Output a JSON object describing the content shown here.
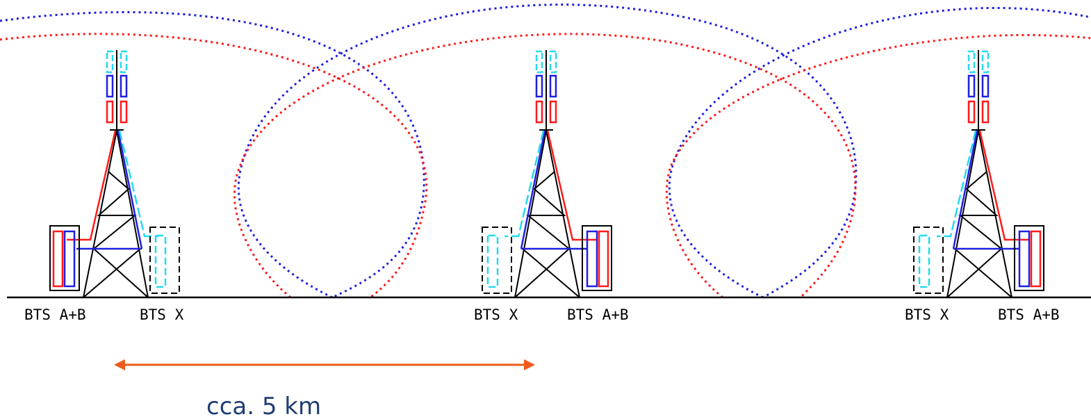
{
  "towers": [
    {
      "left_label": "BTS A+B",
      "right_label": "BTS X"
    },
    {
      "left_label": "BTS X",
      "right_label": "BTS A+B"
    },
    {
      "left_label": "BTS X",
      "right_label": "BTS A+B"
    }
  ],
  "distance": {
    "label": "cca. 5 km"
  },
  "colors": {
    "red": "#ff1a1a",
    "blue": "#1f1fe0",
    "cyan": "#25d9ee",
    "black": "#000000",
    "arrow": "#f05a1a",
    "distance_text": "#1f3d73"
  }
}
